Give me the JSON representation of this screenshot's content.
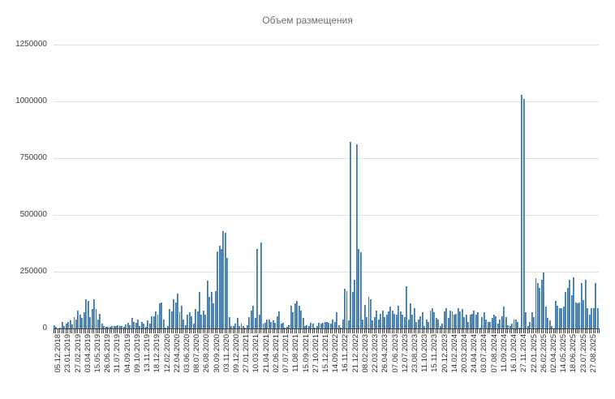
{
  "chart_data": {
    "type": "bar",
    "title": "Объем размещения",
    "xlabel": "",
    "ylabel": "",
    "ylim": [
      0,
      1250000
    ],
    "yticks": [
      0,
      250000,
      500000,
      750000,
      1000000,
      1250000
    ],
    "ytick_labels": [
      "0",
      "250000",
      "500000",
      "750000",
      "1000000",
      "1250000"
    ],
    "grid": true,
    "legend": "none",
    "bar_color": "#5b9bd5",
    "x_tick_labels": [
      "05.12.2018",
      "23.01.2019",
      "27.02.2019",
      "03.04.2019",
      "15.05.2019",
      "26.06.2019",
      "31.07.2019",
      "04.09.2019",
      "09.10.2019",
      "13.11.2019",
      "18.12.2019",
      "12.02.2020",
      "22.04.2020",
      "03.06.2020",
      "08.07.2020",
      "26.08.2020",
      "30.09.2020",
      "03.11.2020",
      "09.12.2020",
      "27.01.2021",
      "10.03.2021",
      "21.04.2021",
      "02.06.2021",
      "07.07.2021",
      "11.08.2021",
      "15.09.2021",
      "27.10.2021",
      "15.12.2021",
      "14.09.2022",
      "16.11.2022",
      "21.12.2022",
      "08.02.2023",
      "22.03.2023",
      "26.04.2023",
      "07.06.2023",
      "12.07.2023",
      "23.08.2023",
      "11.10.2023",
      "15.11.2023",
      "20.12.2023",
      "14.02.2024",
      "20.03.2024",
      "24.04.2024",
      "03.07.2024",
      "07.08.2024",
      "11.09.2024",
      "16.10.2024",
      "27.11.2024",
      "22.01.2025",
      "26.02.2025",
      "02.04.2025",
      "14.05.2025",
      "18.06.2025",
      "23.07.2025",
      "27.08.2025"
    ],
    "values": [
      15000,
      8000,
      0,
      3000,
      30000,
      12000,
      20000,
      28000,
      35000,
      18000,
      50000,
      40000,
      80000,
      60000,
      45000,
      70000,
      130000,
      120000,
      50000,
      85000,
      130000,
      85000,
      40000,
      65000,
      20000,
      10000,
      8000,
      8000,
      8000,
      12000,
      12000,
      12000,
      14000,
      12000,
      12000,
      6000,
      18000,
      25000,
      15000,
      45000,
      30000,
      25000,
      40000,
      10000,
      30000,
      20000,
      8000,
      35000,
      20000,
      55000,
      55000,
      75000,
      60000,
      110000,
      115000,
      40000,
      5000,
      10000,
      85000,
      75000,
      130000,
      115000,
      155000,
      70000,
      100000,
      40000,
      15000,
      60000,
      70000,
      55000,
      20000,
      85000,
      75000,
      160000,
      60000,
      80000,
      60000,
      210000,
      140000,
      160000,
      110000,
      165000,
      340000,
      365000,
      350000,
      430000,
      420000,
      310000,
      50000,
      10000,
      10000,
      20000,
      45000,
      10000,
      20000,
      10000,
      5000,
      15000,
      50000,
      80000,
      100000,
      45000,
      350000,
      60000,
      380000,
      20000,
      25000,
      40000,
      40000,
      30000,
      35000,
      25000,
      55000,
      75000,
      20000,
      25000,
      5000,
      8000,
      15000,
      100000,
      70000,
      110000,
      120000,
      100000,
      80000,
      45000,
      10000,
      15000,
      10000,
      25000,
      20000,
      5000,
      10000,
      25000,
      20000,
      25000,
      30000,
      30000,
      25000,
      20000,
      40000,
      30000,
      70000,
      15000,
      5000,
      40000,
      175000,
      165000,
      35000,
      820000,
      160000,
      215000,
      810000,
      350000,
      335000,
      40000,
      105000,
      50000,
      140000,
      130000,
      35000,
      50000,
      80000,
      40000,
      65000,
      80000,
      50000,
      60000,
      75000,
      95000,
      80000,
      65000,
      60000,
      100000,
      75000,
      60000,
      50000,
      185000,
      40000,
      110000,
      60000,
      90000,
      30000,
      40000,
      55000,
      70000,
      10000,
      40000,
      30000,
      80000,
      90000,
      70000,
      45000,
      40000,
      10000,
      20000,
      75000,
      90000,
      45000,
      80000,
      75000,
      60000,
      65000,
      90000,
      75000,
      85000,
      50000,
      60000,
      30000,
      60000,
      65000,
      80000,
      60000,
      70000,
      5000,
      50000,
      70000,
      40000,
      30000,
      30000,
      45000,
      60000,
      55000,
      20000,
      40000,
      55000,
      95000,
      50000,
      15000,
      10000,
      20000,
      40000,
      40000,
      30000,
      5000,
      1030000,
      1010000,
      70000,
      10000,
      30000,
      70000,
      50000,
      220000,
      200000,
      180000,
      215000,
      245000,
      95000,
      45000,
      35000,
      10000,
      0,
      120000,
      100000,
      90000,
      90000,
      95000,
      160000,
      180000,
      215000,
      145000,
      225000,
      115000,
      110000,
      115000,
      200000,
      125000,
      215000,
      90000,
      60000,
      90000,
      90000,
      200000,
      90000
    ]
  }
}
